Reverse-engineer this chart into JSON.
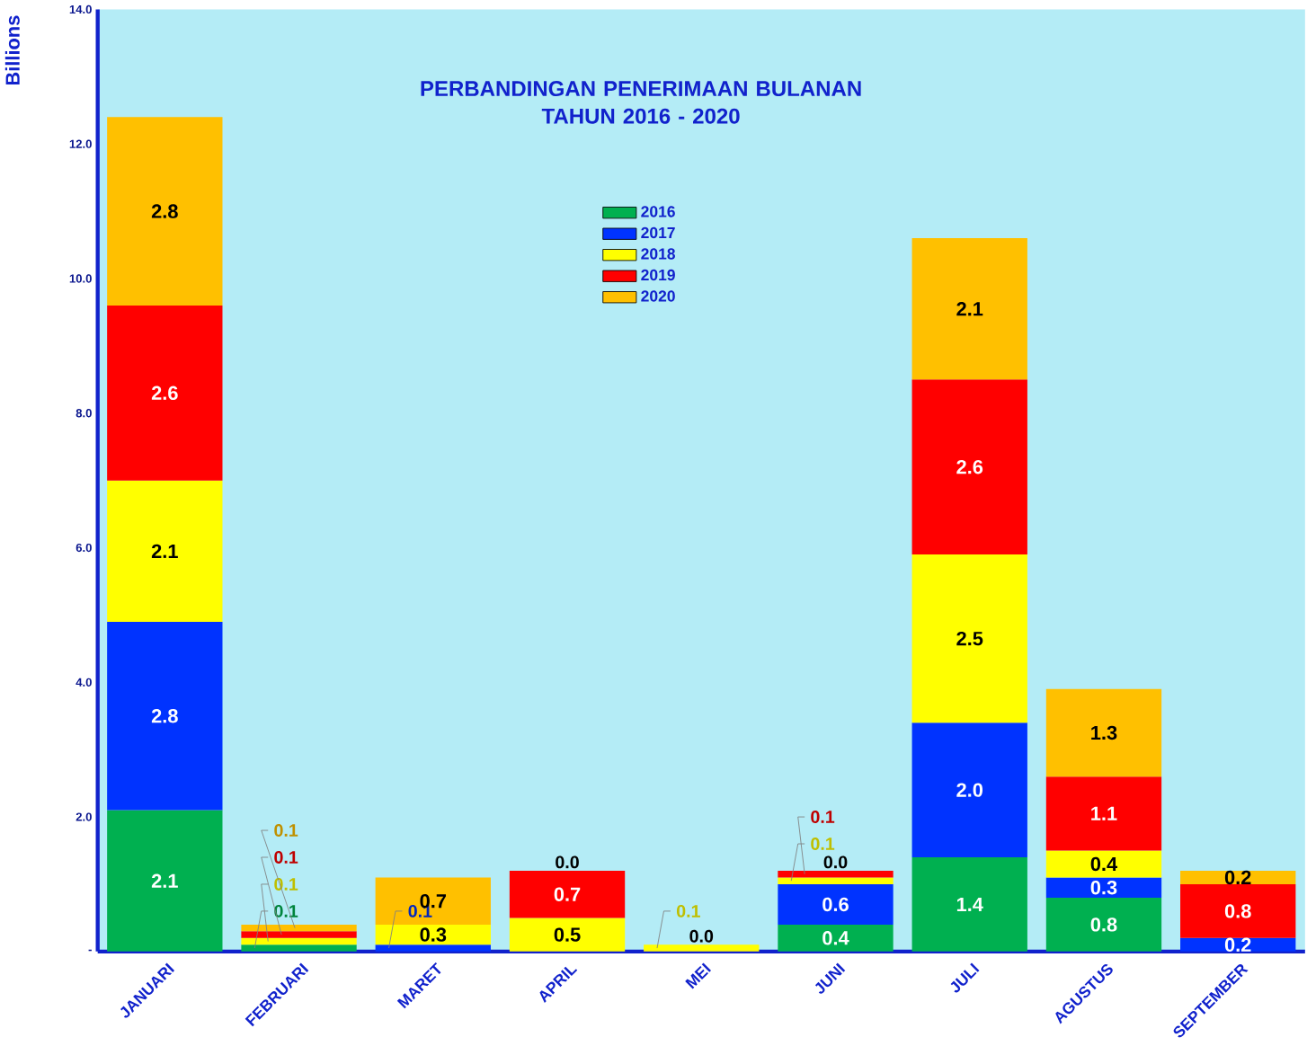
{
  "chart_data": {
    "type": "bar",
    "stacked": true,
    "title": "PERBANDINGAN PENERIMAAN BULANAN\nTAHUN 2016 - 2020",
    "ylabel": "Billions",
    "categories": [
      "JANUARI",
      "FEBRUARI",
      "MARET",
      "APRIL",
      "MEI",
      "JUNI",
      "JULI",
      "AGUSTUS",
      "SEPTEMBER"
    ],
    "ylim": [
      0,
      14
    ],
    "yticks": [
      {
        "value": 0,
        "label": "-"
      },
      {
        "value": 2,
        "label": "2.0"
      },
      {
        "value": 4,
        "label": "4.0"
      },
      {
        "value": 6,
        "label": "6.0"
      },
      {
        "value": 8,
        "label": "8.0"
      },
      {
        "value": 10,
        "label": "10.0"
      },
      {
        "value": 12,
        "label": "12.0"
      },
      {
        "value": 14,
        "label": "14.0"
      }
    ],
    "legend": "top",
    "grid": false,
    "series": [
      {
        "name": "2016",
        "color": "#00b050",
        "values": [
          2.1,
          0.1,
          null,
          null,
          null,
          0.4,
          1.4,
          0.8,
          null
        ],
        "value_labels": [
          "2.1",
          "0.1",
          null,
          null,
          null,
          "0.4",
          "1.4",
          "0.8",
          null
        ]
      },
      {
        "name": "2017",
        "color": "#0033ff",
        "values": [
          2.8,
          null,
          0.1,
          null,
          null,
          0.6,
          2.0,
          0.3,
          0.2
        ],
        "value_labels": [
          "2.8",
          null,
          "0.1",
          null,
          null,
          "0.6",
          "2.0",
          "0.3",
          "0.2"
        ]
      },
      {
        "name": "2018",
        "color": "#ffff00",
        "values": [
          2.1,
          0.1,
          0.3,
          0.5,
          0.1,
          0.1,
          2.5,
          0.4,
          null
        ],
        "value_labels": [
          "2.1",
          "0.1",
          "0.3",
          "0.5",
          "0.1",
          "0.1",
          "2.5",
          "0.4",
          null
        ]
      },
      {
        "name": "2019",
        "color": "#ff0000",
        "values": [
          2.6,
          0.1,
          null,
          0.7,
          null,
          0.1,
          2.6,
          1.1,
          0.8
        ],
        "value_labels": [
          "2.6",
          "0.1",
          null,
          "0.7",
          null,
          "0.1",
          "2.6",
          "1.1",
          "0.8"
        ]
      },
      {
        "name": "2020",
        "color": "#ffc000",
        "values": [
          2.8,
          0.1,
          0.7,
          0.0,
          0.0,
          0.0,
          2.1,
          1.3,
          0.2
        ],
        "value_labels": [
          "2.8",
          "0.1",
          "0.7",
          "0.0",
          "0.0",
          "0.0",
          "2.1",
          "1.3",
          "0.2"
        ]
      }
    ]
  }
}
